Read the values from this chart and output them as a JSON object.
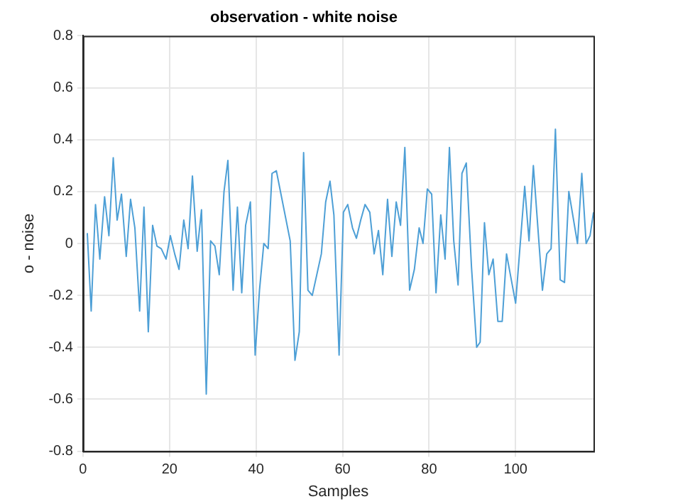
{
  "chart_data": {
    "type": "line",
    "title": "observation - white noise",
    "xlabel": "Samples",
    "ylabel": "o - noise",
    "xlim": [
      0,
      118
    ],
    "xticks": [
      0,
      20,
      40,
      60,
      80,
      100
    ],
    "ylim": [
      -0.8,
      0.8
    ],
    "yticks": [
      -0.8,
      -0.6,
      -0.4,
      -0.2,
      0,
      0.2,
      0.4,
      0.6,
      0.8
    ],
    "grid": true,
    "marker": "none",
    "line_style": "solid",
    "series": [
      {
        "color": "#4d9fd6",
        "x": [
          1.0,
          1.9,
          2.9,
          3.9,
          5.0,
          6.0,
          7.0,
          7.9,
          8.9,
          10.0,
          11.0,
          12.0,
          13.1,
          14.1,
          15.1,
          16.1,
          17.1,
          18.1,
          19.2,
          20.2,
          21.2,
          22.2,
          23.3,
          24.3,
          25.3,
          26.4,
          27.4,
          28.5,
          29.5,
          30.5,
          31.5,
          32.6,
          33.5,
          34.7,
          35.7,
          36.7,
          37.6,
          38.7,
          39.8,
          40.8,
          41.8,
          42.8,
          43.7,
          44.7,
          47.9,
          49.0,
          50.0,
          51.0,
          52.0,
          53.0,
          55.1,
          56.1,
          57.1,
          58.0,
          59.2,
          60.2,
          61.2,
          62.3,
          63.2,
          64.2,
          65.2,
          66.3,
          67.3,
          68.3,
          69.3,
          70.4,
          71.4,
          72.4,
          73.4,
          74.4,
          75.5,
          76.6,
          77.7,
          78.6,
          79.6,
          80.6,
          81.6,
          82.7,
          83.7,
          84.7,
          85.7,
          86.7,
          87.6,
          88.6,
          89.8,
          91.0,
          91.8,
          92.8,
          93.8,
          94.8,
          95.9,
          96.9,
          97.9,
          100.0,
          102.1,
          103.1,
          104.1,
          106.2,
          107.2,
          108.2,
          109.2,
          110.3,
          111.3,
          112.3,
          114.3,
          115.3,
          116.3,
          117.2,
          118.0
        ],
        "values": [
          0.04,
          -0.26,
          0.15,
          -0.06,
          0.18,
          0.03,
          0.33,
          0.09,
          0.19,
          -0.05,
          0.17,
          0.06,
          -0.26,
          0.14,
          -0.34,
          0.07,
          -0.01,
          -0.02,
          -0.06,
          0.03,
          -0.04,
          -0.1,
          0.09,
          -0.02,
          0.26,
          -0.03,
          0.13,
          -0.58,
          0.01,
          -0.01,
          -0.12,
          0.2,
          0.32,
          -0.18,
          0.14,
          -0.19,
          0.07,
          0.16,
          -0.43,
          -0.18,
          0.0,
          -0.02,
          0.27,
          0.28,
          0.01,
          -0.45,
          -0.34,
          0.35,
          -0.18,
          -0.2,
          -0.04,
          0.16,
          0.24,
          0.11,
          -0.43,
          0.12,
          0.15,
          0.06,
          0.02,
          0.09,
          0.15,
          0.12,
          -0.04,
          0.05,
          -0.12,
          0.17,
          -0.05,
          0.16,
          0.07,
          0.37,
          -0.18,
          -0.1,
          0.06,
          0.0,
          0.21,
          0.19,
          -0.19,
          0.11,
          -0.06,
          0.37,
          0.01,
          -0.16,
          0.27,
          0.31,
          -0.09,
          -0.4,
          -0.38,
          0.08,
          -0.12,
          -0.06,
          -0.3,
          -0.3,
          -0.04,
          -0.23,
          0.22,
          0.01,
          0.3,
          -0.18,
          -0.04,
          -0.02,
          0.44,
          -0.14,
          -0.15,
          0.2,
          0.0,
          0.27,
          0.0,
          0.03,
          0.12
        ]
      }
    ]
  }
}
